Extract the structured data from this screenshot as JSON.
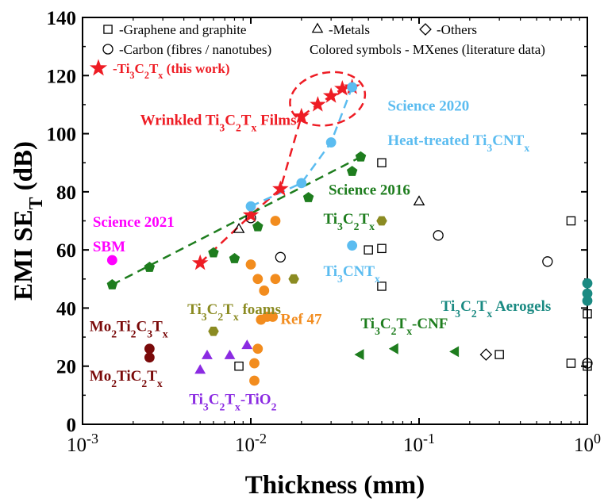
{
  "chart_data": {
    "type": "scatter",
    "xlabel": "Thickness (mm)",
    "ylabel_main": "EMI SE",
    "ylabel_sub": "T",
    "ylabel_unit": " (dB)",
    "xscale": "log",
    "xlim": [
      0.001,
      1
    ],
    "ylim": [
      0,
      140
    ],
    "yticks": [
      0,
      20,
      40,
      60,
      80,
      100,
      120,
      140
    ],
    "xticks": [
      {
        "value": 0.001,
        "base": "10",
        "exp": "-3"
      },
      {
        "value": 0.01,
        "base": "10",
        "exp": "-2"
      },
      {
        "value": 0.1,
        "base": "10",
        "exp": "-1"
      },
      {
        "value": 1,
        "base": "10",
        "exp": "0"
      }
    ],
    "grid": false,
    "legend_placement": "top",
    "legend": [
      {
        "marker": "square",
        "color": "#000000",
        "text": "-Graphene and graphite"
      },
      {
        "marker": "triangle",
        "color": "#000000",
        "text": "-Metals"
      },
      {
        "marker": "diamond",
        "color": "#000000",
        "text": "-Others"
      },
      {
        "marker": "circle",
        "color": "#000000",
        "text": "-Carbon (fibres / nanotubes)"
      },
      {
        "marker": "none",
        "color": "#000000",
        "text": "Colored symbols - MXenes (literature data)"
      },
      {
        "marker": "star",
        "color": "#ee1c24",
        "text_parts": [
          [
            "-Ti",
            ""
          ],
          [
            "3",
            "sub"
          ],
          [
            "C",
            ""
          ],
          [
            "2",
            "sub"
          ],
          [
            "T",
            ""
          ],
          [
            "x",
            "sub"
          ],
          [
            " (this work)",
            ""
          ]
        ]
      }
    ],
    "series": [
      {
        "marker": "square",
        "color": "#000000",
        "filled": false,
        "x": [
          0.0085,
          0.05,
          0.06,
          0.06,
          0.06,
          0.3,
          0.8,
          0.8,
          1.0,
          1.0
        ],
        "y": [
          20,
          60,
          60.5,
          47.5,
          90,
          24,
          21,
          70,
          38,
          20
        ]
      },
      {
        "marker": "triangle",
        "color": "#000000",
        "filled": false,
        "x": [
          0.1,
          0.0085
        ],
        "y": [
          76.5,
          67
        ]
      },
      {
        "marker": "diamond",
        "color": "#000000",
        "filled": false,
        "x": [
          0.25
        ],
        "y": [
          24
        ]
      },
      {
        "marker": "circle",
        "color": "#000000",
        "filled": false,
        "x": [
          0.01,
          0.015,
          0.13,
          0.58,
          1.0
        ],
        "y": [
          71,
          57.5,
          65,
          56,
          21
        ]
      },
      {
        "marker": "star",
        "color": "#ee1c24",
        "filled": true,
        "x": [
          0.005,
          0.01,
          0.015,
          0.02,
          0.025,
          0.03,
          0.035,
          0.04
        ],
        "y": [
          55.5,
          72,
          81,
          106,
          110,
          113,
          115.5,
          116
        ]
      },
      {
        "marker": "circle",
        "color": "#5bbcf0",
        "filled": true,
        "x": [
          0.01,
          0.02,
          0.03,
          0.04,
          0.04
        ],
        "y": [
          75,
          83,
          97,
          116,
          61.5
        ]
      },
      {
        "marker": "pentagon",
        "color": "#1e7d1e",
        "filled": true,
        "x": [
          0.0015,
          0.0025,
          0.006,
          0.008,
          0.011,
          0.022,
          0.04,
          0.045
        ],
        "y": [
          48,
          54,
          59,
          57,
          68,
          78,
          87,
          92
        ]
      },
      {
        "marker": "circle",
        "color": "#ff00ff",
        "filled": true,
        "x": [
          0.0015
        ],
        "y": [
          56.5
        ]
      },
      {
        "marker": "hexagon",
        "color": "#8b8b22",
        "filled": true,
        "x": [
          0.006,
          0.018,
          0.06
        ],
        "y": [
          32,
          50,
          70
        ]
      },
      {
        "marker": "circle",
        "color": "#f28c1e",
        "filled": true,
        "x": [
          0.01,
          0.011,
          0.012,
          0.014,
          0.014,
          0.0105,
          0.0105,
          0.011,
          0.0125,
          0.0115,
          0.0135
        ],
        "y": [
          55,
          50,
          46,
          50,
          70,
          21,
          15,
          26,
          37,
          36,
          37
        ]
      },
      {
        "marker": "circle",
        "color": "#7a0a0a",
        "filled": true,
        "x": [
          0.0025,
          0.0025
        ],
        "y": [
          26,
          23
        ]
      },
      {
        "marker": "triangle",
        "color": "#8b2be2",
        "filled": true,
        "x": [
          0.005,
          0.0055,
          0.0075,
          0.0095
        ],
        "y": [
          18.5,
          23.5,
          23.5,
          27
        ]
      },
      {
        "marker": "triangle-left",
        "color": "#1e7d1e",
        "filled": true,
        "x": [
          0.045,
          0.072,
          0.165
        ],
        "y": [
          24,
          26,
          25
        ]
      },
      {
        "marker": "circle",
        "color": "#1a8a82",
        "filled": true,
        "x": [
          1.0,
          1.0,
          1.0
        ],
        "y": [
          48.5,
          45,
          42.5
        ]
      }
    ],
    "trend_lines": [
      {
        "color": "#ee1c24",
        "x": [
          0.005,
          0.01,
          0.015,
          0.02,
          0.025,
          0.03,
          0.035,
          0.04
        ],
        "y": [
          55.5,
          72,
          81,
          106,
          110,
          113,
          115.5,
          116
        ]
      },
      {
        "color": "#5bbcf0",
        "x": [
          0.01,
          0.02,
          0.03,
          0.04
        ],
        "y": [
          75,
          83,
          97,
          116
        ]
      },
      {
        "color": "#1e7d1e",
        "x": [
          0.0015,
          0.045
        ],
        "y": [
          48,
          92
        ]
      }
    ],
    "ellipse": {
      "color": "#ee1c24",
      "x_range": [
        0.017,
        0.048
      ],
      "y_range": [
        103,
        121
      ]
    },
    "annotations": [
      {
        "parts": [
          [
            "Wrinkled Ti",
            ""
          ],
          [
            "3",
            "sub"
          ],
          [
            "C",
            ""
          ],
          [
            "2",
            "sub"
          ],
          [
            "T",
            ""
          ],
          [
            "x",
            "sub"
          ],
          [
            " Films",
            ""
          ]
        ],
        "color": "#ee1c24",
        "x": 0.0022,
        "y": 103
      },
      {
        "parts": [
          [
            "Science 2020",
            ""
          ]
        ],
        "color": "#5bbcf0",
        "x": 0.065,
        "y": 108
      },
      {
        "parts": [
          [
            "Heat-treated Ti",
            ""
          ],
          [
            "3",
            "sub"
          ],
          [
            "CNT",
            ""
          ],
          [
            "x",
            "sub"
          ]
        ],
        "color": "#5bbcf0",
        "x": 0.065,
        "y": 96
      },
      {
        "parts": [
          [
            "Science 2016",
            ""
          ]
        ],
        "color": "#1e7d1e",
        "x": 0.029,
        "y": 79
      },
      {
        "parts": [
          [
            "Ti",
            ""
          ],
          [
            "3",
            "sub"
          ],
          [
            "C",
            ""
          ],
          [
            "2",
            "sub"
          ],
          [
            "T",
            ""
          ],
          [
            "x",
            "sub"
          ]
        ],
        "color": "#1e7d1e",
        "x": 0.027,
        "y": 69
      },
      {
        "parts": [
          [
            "Science 2021",
            ""
          ]
        ],
        "color": "#ff00ff",
        "x": 0.00115,
        "y": 68
      },
      {
        "parts": [
          [
            "SBM",
            ""
          ]
        ],
        "color": "#ff00ff",
        "x": 0.00115,
        "y": 59.5
      },
      {
        "parts": [
          [
            "Ti",
            ""
          ],
          [
            "3",
            "sub"
          ],
          [
            "CNT",
            ""
          ],
          [
            "x",
            "sub"
          ]
        ],
        "color": "#5bbcf0",
        "x": 0.027,
        "y": 51
      },
      {
        "parts": [
          [
            "Ti",
            ""
          ],
          [
            "3",
            "sub"
          ],
          [
            "C",
            ""
          ],
          [
            "2",
            "sub"
          ],
          [
            "T",
            ""
          ],
          [
            "x",
            "sub"
          ],
          [
            " Aerogels",
            ""
          ]
        ],
        "color": "#1a8a82",
        "x": 0.135,
        "y": 39
      },
      {
        "parts": [
          [
            "Ti",
            ""
          ],
          [
            "3",
            "sub"
          ],
          [
            "C",
            ""
          ],
          [
            "2",
            "sub"
          ],
          [
            "T",
            ""
          ],
          [
            "x",
            "sub"
          ],
          [
            " foams",
            ""
          ]
        ],
        "color": "#8b8b22",
        "x": 0.0042,
        "y": 38
      },
      {
        "parts": [
          [
            "Ref 47",
            ""
          ]
        ],
        "color": "#f28c1e",
        "x": 0.015,
        "y": 34.5
      },
      {
        "parts": [
          [
            "Ti",
            ""
          ],
          [
            "3",
            "sub"
          ],
          [
            "C",
            ""
          ],
          [
            "2",
            "sub"
          ],
          [
            "T",
            ""
          ],
          [
            "x",
            "sub"
          ],
          [
            "-CNF",
            ""
          ]
        ],
        "color": "#1e7d1e",
        "x": 0.045,
        "y": 33
      },
      {
        "parts": [
          [
            "Mo",
            ""
          ],
          [
            "2",
            "sub"
          ],
          [
            "Ti",
            ""
          ],
          [
            "2",
            "sub"
          ],
          [
            "C",
            ""
          ],
          [
            "3",
            "sub"
          ],
          [
            "T",
            ""
          ],
          [
            "x",
            "sub"
          ]
        ],
        "color": "#7a0a0a",
        "x": 0.0011,
        "y": 32
      },
      {
        "parts": [
          [
            "Mo",
            ""
          ],
          [
            "2",
            "sub"
          ],
          [
            "TiC",
            ""
          ],
          [
            "2",
            "sub"
          ],
          [
            "T",
            ""
          ],
          [
            "x",
            "sub"
          ]
        ],
        "color": "#7a0a0a",
        "x": 0.0011,
        "y": 15
      },
      {
        "parts": [
          [
            "Ti",
            ""
          ],
          [
            "3",
            "sub"
          ],
          [
            "C",
            ""
          ],
          [
            "2",
            "sub"
          ],
          [
            "T",
            ""
          ],
          [
            "x",
            "sub"
          ],
          [
            "-TiO",
            ""
          ],
          [
            "2",
            "sub"
          ]
        ],
        "color": "#8b2be2",
        "x": 0.0043,
        "y": 7
      }
    ]
  }
}
